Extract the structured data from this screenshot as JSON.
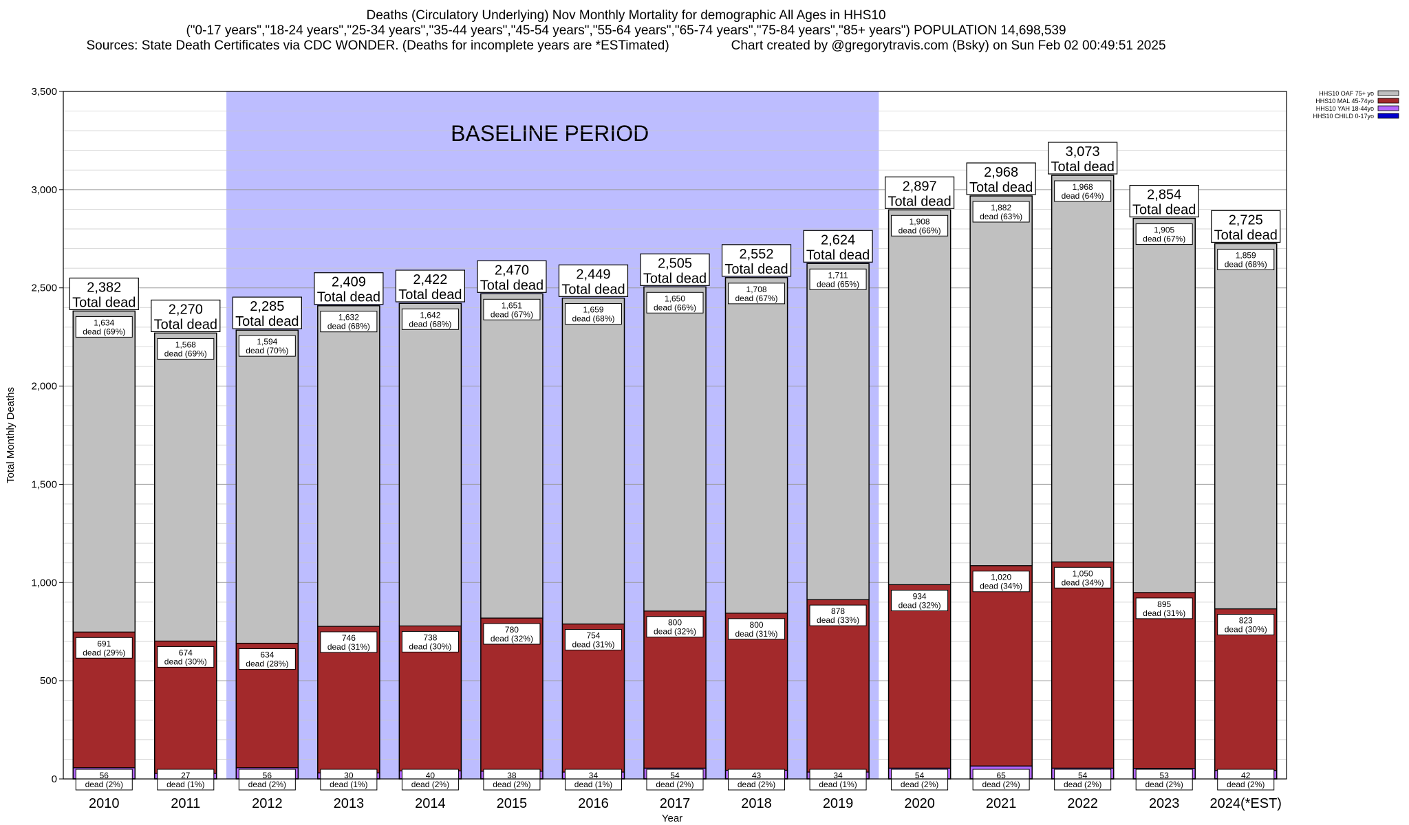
{
  "header": {
    "title_line1": "Deaths (Circulatory Underlying) Nov Monthly Mortality for demographic All Ages in HHS10",
    "title_line2": "(\"0-17 years\",\"18-24 years\",\"25-34 years\",\"35-44 years\",\"45-54 years\",\"55-64 years\",\"65-74 years\",\"75-84 years\",\"85+ years\") POPULATION 14,698,539",
    "sources": "Sources: State Death Certificates via CDC WONDER. (Deaths for incomplete years are *ESTimated)",
    "credit": "Chart created by @gregorytravis.com (Bsky) on Sun Feb 02 00:49:51 2025"
  },
  "chart_data": {
    "type": "bar",
    "stacked": true,
    "xlabel": "Year",
    "ylabel": "Total Monthly Deaths",
    "ylim": [
      0,
      3500
    ],
    "yticks": [
      0,
      500,
      1000,
      1500,
      2000,
      2500,
      3000,
      3500
    ],
    "ytick_labels": [
      "0",
      "500",
      "1,000",
      "1,500",
      "2,000",
      "2,500",
      "3,000",
      "3,500"
    ],
    "grid": true,
    "categories": [
      "2010",
      "2011",
      "2012",
      "2013",
      "2014",
      "2015",
      "2016",
      "2017",
      "2018",
      "2019",
      "2020",
      "2021",
      "2022",
      "2023",
      "2024(*EST)"
    ],
    "series": [
      {
        "name": "HHS10 CHILD 0-17yo",
        "color": "#0000cc",
        "values": [
          1,
          1,
          1,
          1,
          1,
          1,
          1,
          1,
          1,
          1,
          1,
          1,
          1,
          1,
          1
        ]
      },
      {
        "name": "HHS10 YAH 18-44yo",
        "color": "#b366ff",
        "values": [
          56,
          27,
          56,
          30,
          40,
          38,
          34,
          54,
          43,
          34,
          54,
          65,
          54,
          53,
          42
        ],
        "labels": [
          "56\ndead (2%)",
          "27\ndead (1%)",
          "56\ndead (2%)",
          "30\ndead (1%)",
          "40\ndead (2%)",
          "38\ndead (2%)",
          "34\ndead (1%)",
          "54\ndead (2%)",
          "43\ndead (2%)",
          "34\ndead (1%)",
          "54\ndead (2%)",
          "65\ndead (2%)",
          "54\ndead (2%)",
          "53\ndead (2%)",
          "42\ndead (2%)"
        ]
      },
      {
        "name": "HHS10 MAL 45-74yo",
        "color": "#a3292b",
        "values": [
          691,
          674,
          634,
          746,
          738,
          780,
          754,
          800,
          800,
          878,
          934,
          1020,
          1050,
          895,
          823
        ],
        "labels": [
          "691\ndead (29%)",
          "674\ndead (30%)",
          "634\ndead (28%)",
          "746\ndead (31%)",
          "738\ndead (30%)",
          "780\ndead (32%)",
          "754\ndead (31%)",
          "800\ndead (32%)",
          "800\ndead (31%)",
          "878\ndead (33%)",
          "934\ndead (32%)",
          "1,020\ndead (34%)",
          "1,050\ndead (34%)",
          "895\ndead (31%)",
          "823\ndead (30%)"
        ]
      },
      {
        "name": "HHS10 OAF 75+ yo",
        "color": "#c0c0c0",
        "values": [
          1634,
          1568,
          1594,
          1632,
          1642,
          1651,
          1659,
          1650,
          1708,
          1711,
          1908,
          1882,
          1968,
          1905,
          1859
        ],
        "labels": [
          "1,634\ndead (69%)",
          "1,568\ndead (69%)",
          "1,594\ndead (70%)",
          "1,632\ndead (68%)",
          "1,642\ndead (68%)",
          "1,651\ndead (67%)",
          "1,659\ndead (68%)",
          "1,650\ndead (66%)",
          "1,708\ndead (67%)",
          "1,711\ndead (65%)",
          "1,908\ndead (66%)",
          "1,882\ndead (63%)",
          "1,968\ndead (64%)",
          "1,905\ndead (67%)",
          "1,859\ndead (68%)"
        ]
      }
    ],
    "totals": [
      2382,
      2270,
      2285,
      2409,
      2422,
      2470,
      2449,
      2505,
      2552,
      2624,
      2897,
      2968,
      3073,
      2854,
      2725
    ],
    "total_labels": [
      "2,382",
      "2,270",
      "2,285",
      "2,409",
      "2,422",
      "2,470",
      "2,449",
      "2,505",
      "2,552",
      "2,624",
      "2,897",
      "2,968",
      "3,073",
      "2,854",
      "2,725"
    ],
    "total_suffix": "Total dead",
    "baseline": {
      "label": "BASELINE PERIOD",
      "from": "2012",
      "to": "2019",
      "color": "#bdbdff"
    },
    "legend": {
      "placement": "top-right",
      "entries": [
        "HHS10 OAF 75+ yo",
        "HHS10 MAL 45-74yo",
        "HHS10 YAH 18-44yo",
        "HHS10 CHILD 0-17yo"
      ],
      "colors": [
        "#c0c0c0",
        "#a3292b",
        "#b366ff",
        "#0000cc"
      ]
    }
  }
}
